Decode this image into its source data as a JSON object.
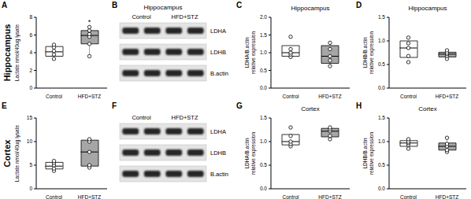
{
  "chart_data": [
    {
      "label": "A",
      "type": "box",
      "row_label": "Hippocampus",
      "ylabel": [
        "Lactate nmol/40ug lysate"
      ],
      "categories": [
        "Control",
        "HFD+STZ"
      ],
      "colors": [
        "#ffffff",
        "#a6a6a6"
      ],
      "boxes": [
        {
          "min": 3.3,
          "q1": 3.6,
          "median": 4.1,
          "q3": 4.7,
          "max": 4.9
        },
        {
          "min": 3.6,
          "q1": 5.0,
          "median": 5.95,
          "q3": 6.5,
          "max": 6.9
        }
      ],
      "points": [
        [
          3.3,
          3.8,
          4.2,
          4.6,
          4.9
        ],
        [
          3.6,
          5.0,
          5.8,
          6.1,
          6.5,
          6.9
        ]
      ],
      "annotations": [
        {
          "text": "*",
          "category": "HFD+STZ"
        }
      ],
      "ylim": [
        0,
        8
      ],
      "yticks": [
        0,
        2,
        4,
        6,
        8
      ]
    },
    {
      "label": "B",
      "type": "blot",
      "title": "Hippocampus",
      "groups": [
        "Control",
        "HFD+STZ"
      ],
      "rows": [
        "LDHA",
        "LDHB",
        "B.actin"
      ]
    },
    {
      "label": "C",
      "type": "box",
      "title": "Hippocampus",
      "ylabel": [
        "LDHA/B.actin",
        "relative expression"
      ],
      "categories": [
        "Control",
        "HFD+STZ"
      ],
      "colors": [
        "#ffffff",
        "#a6a6a6"
      ],
      "boxes": [
        {
          "min": 0.88,
          "q1": 0.9,
          "median": 1.0,
          "q3": 1.2,
          "max": 1.45
        },
        {
          "min": 0.62,
          "q1": 0.7,
          "median": 0.9,
          "q3": 1.2,
          "max": 1.28
        }
      ],
      "points": [
        [
          0.88,
          0.95,
          1.0,
          1.1,
          1.45
        ],
        [
          0.62,
          0.78,
          0.9,
          1.1,
          1.28
        ]
      ],
      "ylim": [
        0,
        2
      ],
      "yticks": [
        {
          "value": 0,
          "label": "0.0"
        },
        0.5,
        {
          "value": 1,
          "label": "1.0"
        },
        1.5,
        {
          "value": 2,
          "label": "2.0"
        }
      ]
    },
    {
      "label": "D",
      "type": "box",
      "title": "Hippocampus",
      "ylabel": [
        "LDHB/B.actin",
        "relative expression"
      ],
      "categories": [
        "Control",
        "HFD+STZ"
      ],
      "colors": [
        "#ffffff",
        "#a6a6a6"
      ],
      "boxes": [
        {
          "min": 0.55,
          "q1": 0.65,
          "median": 0.85,
          "q3": 1.0,
          "max": 1.07
        },
        {
          "min": 0.62,
          "q1": 0.66,
          "median": 0.72,
          "q3": 0.76,
          "max": 0.8
        }
      ],
      "points": [
        [
          0.55,
          0.68,
          0.85,
          0.95,
          1.07
        ],
        [
          0.62,
          0.68,
          0.72,
          0.75,
          0.8
        ]
      ],
      "ylim": [
        0,
        1.5
      ],
      "yticks": [
        {
          "value": 0,
          "label": "0.0"
        },
        0.5,
        {
          "value": 1,
          "label": "1.0"
        },
        1.5
      ]
    },
    {
      "label": "E",
      "type": "box",
      "row_label": "Cortex",
      "ylabel": [
        "Lactate nmol/40ug lysate"
      ],
      "categories": [
        "Control",
        "HFD+STZ"
      ],
      "colors": [
        "#ffffff",
        "#a6a6a6"
      ],
      "boxes": [
        {
          "min": 3.8,
          "q1": 4.2,
          "median": 4.8,
          "q3": 5.6,
          "max": 5.9
        },
        {
          "min": 4.5,
          "q1": 4.8,
          "median": 7.8,
          "q3": 10.3,
          "max": 10.5
        }
      ],
      "points": [
        [
          3.8,
          4.3,
          5.0,
          5.5,
          5.9
        ],
        [
          4.5,
          5.0,
          7.8,
          10.0,
          10.5
        ]
      ],
      "ylim": [
        0,
        15
      ],
      "yticks": [
        0,
        5,
        10,
        15
      ]
    },
    {
      "label": "F",
      "type": "blot",
      "groups": [
        "Control",
        "HFD+STZ"
      ],
      "rows": [
        "LDHA",
        "LDHB",
        "B.actin"
      ]
    },
    {
      "label": "G",
      "type": "box",
      "title": "Cortex",
      "ylabel": [
        "LDHA/B.actin",
        "relative expression"
      ],
      "categories": [
        "Control",
        "HFD+STZ"
      ],
      "colors": [
        "#ffffff",
        "#a6a6a6"
      ],
      "boxes": [
        {
          "min": 0.9,
          "q1": 0.93,
          "median": 1.0,
          "q3": 1.15,
          "max": 1.3
        },
        {
          "min": 1.05,
          "q1": 1.1,
          "median": 1.22,
          "q3": 1.28,
          "max": 1.3
        }
      ],
      "points": [
        [
          0.9,
          0.95,
          1.0,
          1.12,
          1.3
        ],
        [
          1.05,
          1.12,
          1.22,
          1.26,
          1.3
        ]
      ],
      "ylim": [
        0,
        1.5
      ],
      "yticks": [
        {
          "value": 0,
          "label": "0.0"
        },
        0.5,
        {
          "value": 1,
          "label": "1.0"
        },
        1.5
      ]
    },
    {
      "label": "H",
      "type": "box",
      "title": "Cortex",
      "ylabel": [
        "LDHB/B.actin",
        "relative expression"
      ],
      "categories": [
        "Control",
        "HFD+STZ"
      ],
      "colors": [
        "#ffffff",
        "#a6a6a6"
      ],
      "boxes": [
        {
          "min": 0.85,
          "q1": 0.9,
          "median": 0.97,
          "q3": 1.02,
          "max": 1.05
        },
        {
          "min": 0.78,
          "q1": 0.82,
          "median": 0.9,
          "q3": 0.97,
          "max": 1.08
        }
      ],
      "points": [
        [
          0.85,
          0.93,
          0.97,
          1.0,
          1.05
        ],
        [
          0.78,
          0.82,
          0.9,
          0.95,
          1.08
        ]
      ],
      "ylim": [
        0,
        1.5
      ],
      "yticks": [
        {
          "value": 0,
          "label": "0.0"
        },
        0.5,
        {
          "value": 1,
          "label": "1.0"
        },
        1.5
      ]
    }
  ]
}
